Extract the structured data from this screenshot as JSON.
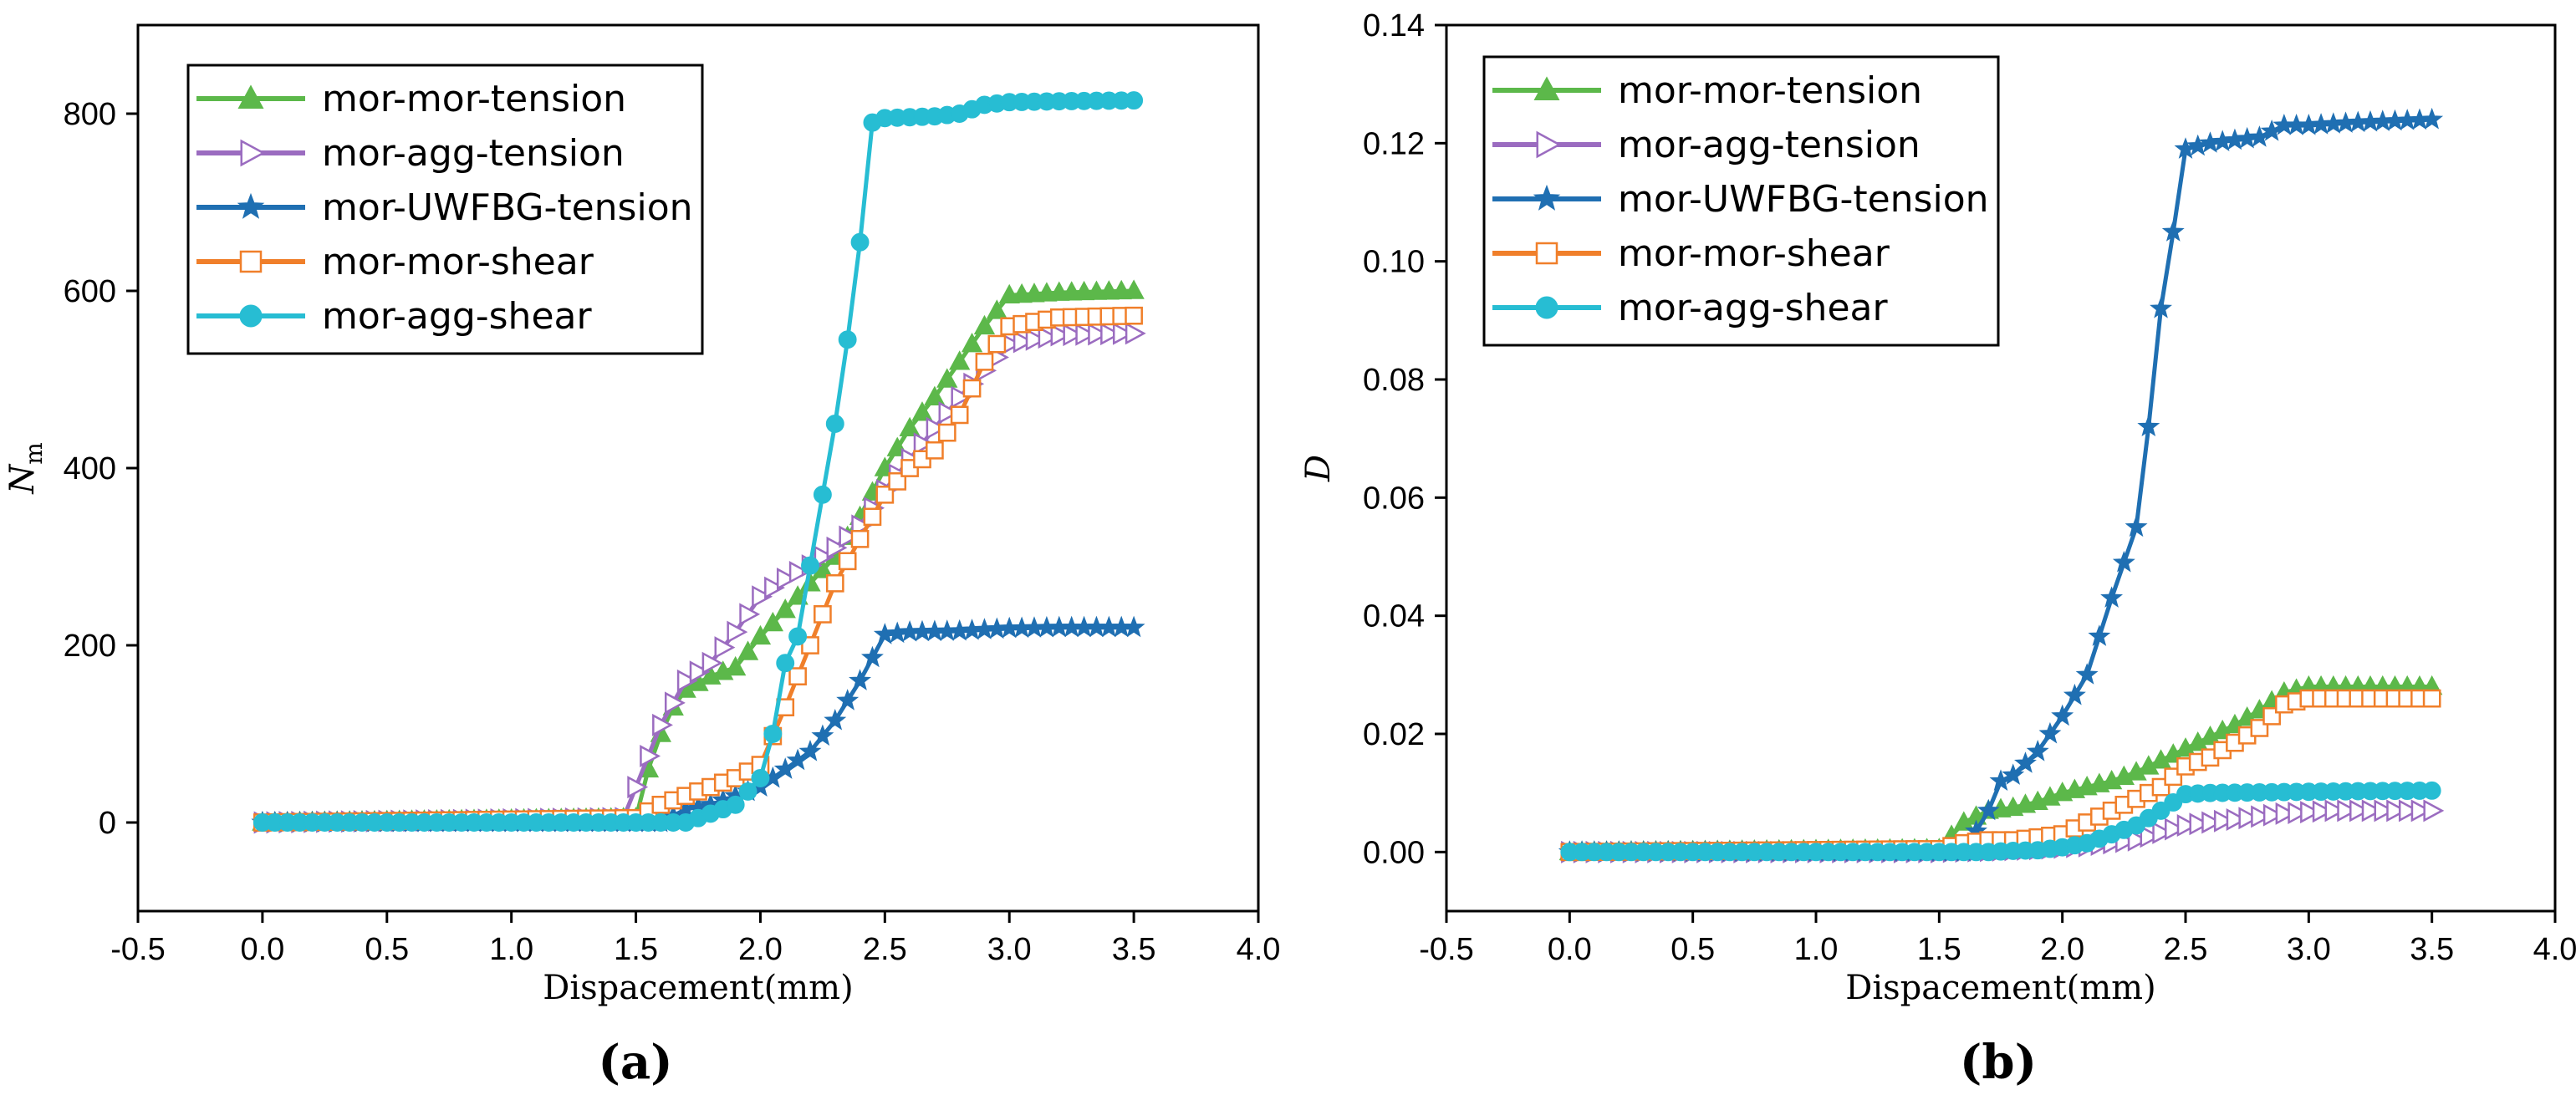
{
  "chart_data": [
    {
      "type": "line",
      "panel_label": "(a)",
      "xlabel": "Dispacement(mm)",
      "ylabel": "N",
      "ylabel_sub": "m",
      "xlim": [
        -0.5,
        4.0
      ],
      "ylim": [
        -100,
        900
      ],
      "xticks": [
        -0.5,
        0.0,
        0.5,
        1.0,
        1.5,
        2.0,
        2.5,
        3.0,
        3.5,
        4.0
      ],
      "xtick_labels": [
        "-0.5",
        "0.0",
        "0.5",
        "1.0",
        "1.5",
        "2.0",
        "2.5",
        "3.0",
        "3.5",
        "4.0"
      ],
      "yticks": [
        0,
        200,
        400,
        600,
        800
      ],
      "ytick_labels": [
        "0",
        "200",
        "400",
        "600",
        "800"
      ],
      "legend_position": "top-left",
      "series": [
        {
          "name": "mor-mor-tension",
          "color": "#5cb84a",
          "marker": "triangle-up",
          "filled": true,
          "x": [
            0,
            1.5,
            1.55,
            1.6,
            1.65,
            1.7,
            1.8,
            1.9,
            2.0,
            2.1,
            2.2,
            2.3,
            2.4,
            2.5,
            2.6,
            2.7,
            2.8,
            2.9,
            3.0,
            3.2,
            3.5
          ],
          "y": [
            0,
            5,
            60,
            100,
            130,
            150,
            165,
            175,
            210,
            240,
            270,
            300,
            345,
            400,
            445,
            480,
            520,
            560,
            595,
            598,
            600
          ]
        },
        {
          "name": "mor-agg-tension",
          "color": "#9b6cc0",
          "marker": "triangle-right",
          "filled": false,
          "x": [
            0,
            1.45,
            1.5,
            1.6,
            1.7,
            1.8,
            1.9,
            2.0,
            2.1,
            2.2,
            2.3,
            2.4,
            2.5,
            2.6,
            2.7,
            2.8,
            2.9,
            3.0,
            3.2,
            3.5
          ],
          "y": [
            0,
            5,
            40,
            110,
            160,
            180,
            215,
            255,
            275,
            290,
            310,
            335,
            375,
            410,
            445,
            480,
            510,
            540,
            550,
            552
          ]
        },
        {
          "name": "mor-UWFBG-tension",
          "color": "#1f6fb2",
          "marker": "star",
          "filled": true,
          "x": [
            0,
            1.6,
            1.7,
            1.8,
            1.9,
            2.0,
            2.1,
            2.2,
            2.3,
            2.4,
            2.5,
            2.6,
            2.8,
            3.0,
            3.2,
            3.5
          ],
          "y": [
            0,
            0,
            15,
            20,
            30,
            40,
            60,
            80,
            115,
            160,
            212,
            215,
            216,
            219,
            220,
            220
          ]
        },
        {
          "name": "mor-mor-shear",
          "color": "#f07f2a",
          "marker": "square",
          "filled": false,
          "x": [
            0,
            1.5,
            1.6,
            1.7,
            1.8,
            1.9,
            2.0,
            2.1,
            2.2,
            2.3,
            2.4,
            2.5,
            2.6,
            2.7,
            2.8,
            2.9,
            3.0,
            3.2,
            3.5
          ],
          "y": [
            0,
            5,
            20,
            30,
            40,
            50,
            65,
            130,
            200,
            270,
            320,
            370,
            400,
            420,
            460,
            520,
            560,
            570,
            572
          ]
        },
        {
          "name": "mor-agg-shear",
          "color": "#27bdd3",
          "marker": "circle",
          "filled": true,
          "x": [
            0,
            1.7,
            1.8,
            1.9,
            2.0,
            2.05,
            2.1,
            2.15,
            2.2,
            2.25,
            2.3,
            2.35,
            2.4,
            2.45,
            2.5,
            2.6,
            2.7,
            2.8,
            2.9,
            3.0,
            3.2,
            3.5
          ],
          "y": [
            0,
            0,
            10,
            20,
            50,
            100,
            180,
            210,
            290,
            370,
            450,
            545,
            655,
            790,
            795,
            796,
            797,
            800,
            810,
            813,
            814,
            815
          ]
        }
      ]
    },
    {
      "type": "line",
      "panel_label": "(b)",
      "xlabel": "Dispacement(mm)",
      "ylabel": "D",
      "ylabel_sub": "",
      "xlim": [
        -0.5,
        4.0
      ],
      "ylim": [
        -0.01,
        0.14
      ],
      "xticks": [
        -0.5,
        0.0,
        0.5,
        1.0,
        1.5,
        2.0,
        2.5,
        3.0,
        3.5,
        4.0
      ],
      "xtick_labels": [
        "-0.5",
        "0.0",
        "0.5",
        "1.0",
        "1.5",
        "2.0",
        "2.5",
        "3.0",
        "3.5",
        "4.0"
      ],
      "yticks": [
        0.0,
        0.02,
        0.04,
        0.06,
        0.08,
        0.1,
        0.12,
        0.14
      ],
      "ytick_labels": [
        "0.00",
        "0.02",
        "0.04",
        "0.06",
        "0.08",
        "0.10",
        "0.12",
        "0.14"
      ],
      "legend_position": "top-left",
      "series": [
        {
          "name": "mor-mor-tension",
          "color": "#5cb84a",
          "marker": "triangle-up",
          "filled": true,
          "x": [
            0,
            1.5,
            1.6,
            1.7,
            1.8,
            1.9,
            2.0,
            2.1,
            2.2,
            2.3,
            2.4,
            2.5,
            2.6,
            2.7,
            2.8,
            2.9,
            3.0,
            3.2,
            3.5
          ],
          "y": [
            0,
            0.0005,
            0.005,
            0.007,
            0.0075,
            0.0085,
            0.01,
            0.011,
            0.012,
            0.0135,
            0.0155,
            0.0175,
            0.0195,
            0.0215,
            0.024,
            0.027,
            0.028,
            0.028,
            0.028
          ]
        },
        {
          "name": "mor-agg-tension",
          "color": "#9b6cc0",
          "marker": "triangle-right",
          "filled": false,
          "x": [
            0,
            1.5,
            1.7,
            1.9,
            2.1,
            2.3,
            2.5,
            2.7,
            2.9,
            3.1,
            3.3,
            3.5
          ],
          "y": [
            0,
            0,
            0.0002,
            0.0005,
            0.001,
            0.002,
            0.0045,
            0.0055,
            0.0065,
            0.007,
            0.007,
            0.007
          ]
        },
        {
          "name": "mor-UWFBG-tension",
          "color": "#1f6fb2",
          "marker": "star",
          "filled": true,
          "x": [
            0,
            1.6,
            1.7,
            1.75,
            1.8,
            1.9,
            2.0,
            2.1,
            2.2,
            2.3,
            2.35,
            2.4,
            2.45,
            2.5,
            2.6,
            2.8,
            2.9,
            3.0,
            3.2,
            3.5
          ],
          "y": [
            0,
            0,
            0.007,
            0.012,
            0.013,
            0.017,
            0.023,
            0.03,
            0.043,
            0.055,
            0.072,
            0.092,
            0.105,
            0.119,
            0.12,
            0.121,
            0.123,
            0.123,
            0.1235,
            0.124
          ]
        },
        {
          "name": "mor-mor-shear",
          "color": "#f07f2a",
          "marker": "square",
          "filled": false,
          "x": [
            0,
            1.5,
            1.6,
            1.7,
            1.8,
            1.9,
            2.0,
            2.1,
            2.2,
            2.3,
            2.4,
            2.5,
            2.6,
            2.7,
            2.8,
            2.9,
            3.0,
            3.2,
            3.5
          ],
          "y": [
            0,
            0.0005,
            0.0015,
            0.002,
            0.002,
            0.0025,
            0.003,
            0.005,
            0.007,
            0.009,
            0.011,
            0.0145,
            0.016,
            0.0185,
            0.021,
            0.025,
            0.026,
            0.026,
            0.026
          ]
        },
        {
          "name": "mor-agg-shear",
          "color": "#27bdd3",
          "marker": "circle",
          "filled": true,
          "x": [
            0,
            1.7,
            1.8,
            1.9,
            2.0,
            2.1,
            2.2,
            2.3,
            2.4,
            2.5,
            2.6,
            2.8,
            3.0,
            3.2,
            3.5
          ],
          "y": [
            0,
            0,
            0.0002,
            0.0003,
            0.0008,
            0.0015,
            0.003,
            0.0045,
            0.007,
            0.0098,
            0.01,
            0.0101,
            0.0102,
            0.0103,
            0.0104
          ]
        }
      ]
    }
  ]
}
